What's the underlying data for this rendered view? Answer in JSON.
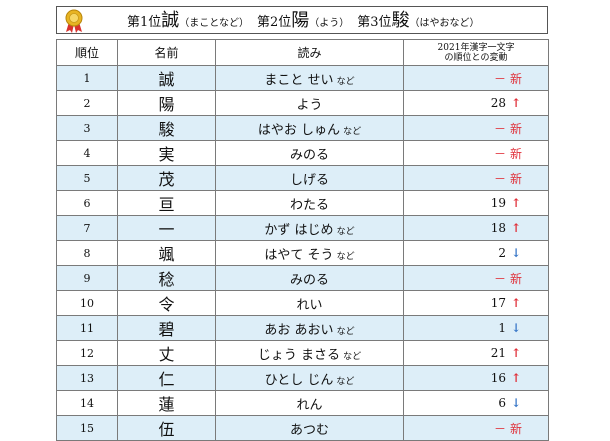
{
  "banner": {
    "rank1_label": "第1位",
    "rank1_kanji": "誠",
    "rank1_reading": "（まことなど）",
    "rank2_label": "第2位",
    "rank2_kanji": "陽",
    "rank2_reading": "（よう）",
    "rank3_label": "第3位",
    "rank3_kanji": "駿",
    "rank3_reading": "（はやおなど）"
  },
  "table": {
    "headers": {
      "rank": "順位",
      "name": "名前",
      "reading": "読み",
      "change_line1": "2021年漢字一文字",
      "change_line2": "の順位との変動"
    },
    "rows": [
      {
        "rank": "1",
        "name": "誠",
        "reading": "まこと せい",
        "nado": "など",
        "prev": "－",
        "trend": "new",
        "shaded": true
      },
      {
        "rank": "2",
        "name": "陽",
        "reading": "よう",
        "nado": "",
        "prev": "28",
        "trend": "up",
        "shaded": false
      },
      {
        "rank": "3",
        "name": "駿",
        "reading": "はやお しゅん",
        "nado": "など",
        "prev": "－",
        "trend": "new",
        "shaded": true
      },
      {
        "rank": "4",
        "name": "実",
        "reading": "みのる",
        "nado": "",
        "prev": "－",
        "trend": "new",
        "shaded": false
      },
      {
        "rank": "5",
        "name": "茂",
        "reading": "しげる",
        "nado": "",
        "prev": "－",
        "trend": "new",
        "shaded": true
      },
      {
        "rank": "6",
        "name": "亘",
        "reading": "わたる",
        "nado": "",
        "prev": "19",
        "trend": "up",
        "shaded": false
      },
      {
        "rank": "7",
        "name": "一",
        "reading": "かず はじめ",
        "nado": "など",
        "prev": "18",
        "trend": "up",
        "shaded": true
      },
      {
        "rank": "8",
        "name": "颯",
        "reading": "はやて そう",
        "nado": "など",
        "prev": "2",
        "trend": "down",
        "shaded": false
      },
      {
        "rank": "9",
        "name": "稔",
        "reading": "みのる",
        "nado": "",
        "prev": "－",
        "trend": "new",
        "shaded": true
      },
      {
        "rank": "10",
        "name": "令",
        "reading": "れい",
        "nado": "",
        "prev": "17",
        "trend": "up",
        "shaded": false
      },
      {
        "rank": "11",
        "name": "碧",
        "reading": "あお あおい",
        "nado": "など",
        "prev": "1",
        "trend": "down",
        "shaded": true
      },
      {
        "rank": "12",
        "name": "丈",
        "reading": "じょう まさる",
        "nado": "など",
        "prev": "21",
        "trend": "up",
        "shaded": false
      },
      {
        "rank": "13",
        "name": "仁",
        "reading": "ひとし じん",
        "nado": "など",
        "prev": "16",
        "trend": "up",
        "shaded": true
      },
      {
        "rank": "14",
        "name": "蓮",
        "reading": "れん",
        "nado": "",
        "prev": "6",
        "trend": "down",
        "shaded": false
      },
      {
        "rank": "15",
        "name": "伍",
        "reading": "あつむ",
        "nado": "",
        "prev": "－",
        "trend": "new",
        "shaded": true
      }
    ],
    "trend_symbols": {
      "new": "新",
      "up": "↑",
      "down": "↓"
    }
  },
  "colors": {
    "shaded_row": "#ddeef8",
    "accent_red": "#e0303a",
    "accent_blue": "#3a78c8",
    "medal_gold": "#e8b422",
    "ribbon_red": "#d8322e"
  },
  "icons": {
    "medal": "gold-medal-icon"
  }
}
